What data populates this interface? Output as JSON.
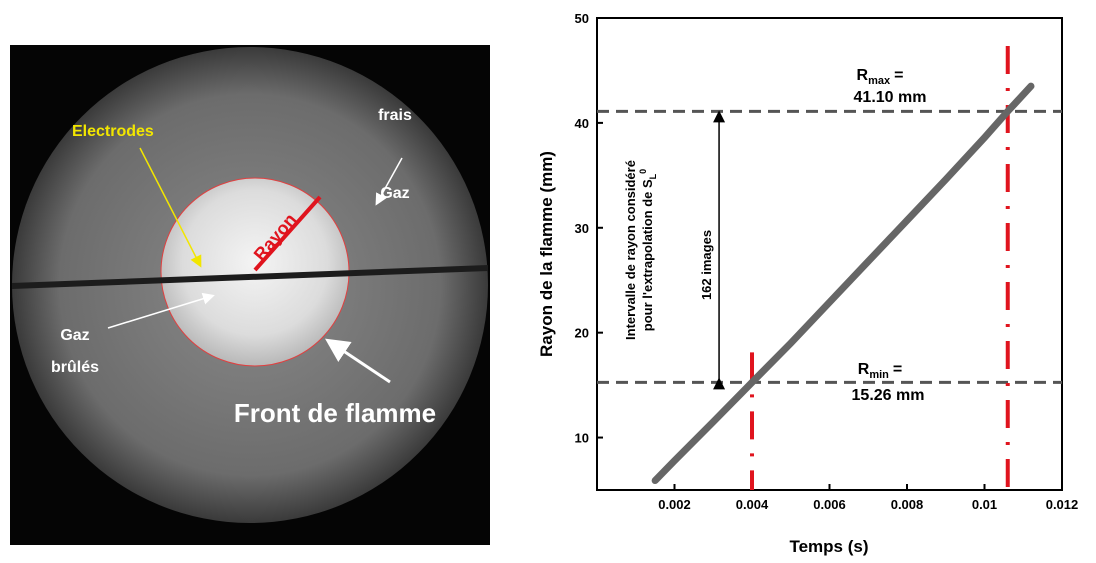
{
  "image": {
    "labels": {
      "fresh_gas": [
        "Gaz",
        "frais"
      ],
      "electrodes": "Electrodes",
      "radius": "Rayon",
      "burnt_gas": [
        "Gaz",
        "brûlés"
      ],
      "flame_front": "Front de flamme"
    }
  },
  "chart_data": {
    "type": "line",
    "xlabel": "Temps (s)",
    "ylabel": "Rayon de la flamme (mm)",
    "x": [
      0.0015,
      0.002,
      0.003,
      0.004,
      0.005,
      0.006,
      0.007,
      0.008,
      0.009,
      0.01,
      0.0106,
      0.0112
    ],
    "series": [
      {
        "color": "#666666",
        "values": [
          5.9,
          7.8,
          11.5,
          15.26,
          19.0,
          22.9,
          26.8,
          30.7,
          34.6,
          38.6,
          41.1,
          43.5
        ]
      }
    ],
    "xlim": [
      0,
      0.012
    ],
    "xticks": [
      0.002,
      0.004,
      0.006,
      0.008,
      0.01,
      0.012
    ],
    "ylim": [
      5,
      50
    ],
    "yticks": [
      10,
      20,
      30,
      40,
      50
    ],
    "hlines": [
      41.1,
      15.26
    ],
    "hline_color": "#555555",
    "vlines": [
      0.004,
      0.0106
    ],
    "vline_color": "#e0141e",
    "annotations": {
      "r_max": {
        "symbol": "R",
        "subscript": "max",
        "equals": "=",
        "text": "41.10 mm"
      },
      "r_min": {
        "symbol": "R",
        "subscript": "min",
        "equals": "=",
        "text": "15.26 mm"
      },
      "interval": [
        "Intervalle de rayon considéré",
        "pour l'extrapolation de S",
        "L",
        "0"
      ],
      "images": "162 images"
    }
  }
}
